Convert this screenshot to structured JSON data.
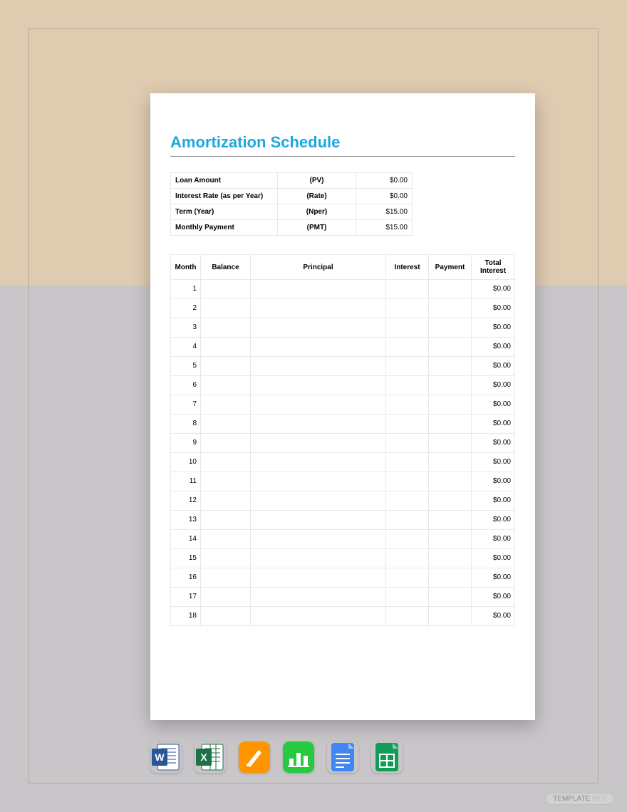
{
  "colors": {
    "bg_top": "#dfcbb0",
    "bg_bottom": "#c9c6c9",
    "frame_border": "#b0a898",
    "page_bg": "#ffffff",
    "title_color": "#1ba8e0",
    "grid_color": "#e8e8e8",
    "text": "#222222"
  },
  "title": "Amortization Schedule",
  "summary": [
    {
      "label": "Loan Amount",
      "symbol": "(PV)",
      "value": "$0.00"
    },
    {
      "label": "Interest Rate (as per Year)",
      "symbol": "(Rate)",
      "value": "$0.00"
    },
    {
      "label": "Term (Year)",
      "symbol": "(Nper)",
      "value": "$15.00"
    },
    {
      "label": "Monthly Payment",
      "symbol": "(PMT)",
      "value": "$15.00"
    }
  ],
  "schedule": {
    "columns": [
      "Month",
      "Balance",
      "Principal",
      "Interest",
      "Payment",
      "Total Interest"
    ],
    "rows": [
      {
        "month": "1",
        "balance": "",
        "principal": "",
        "interest": "",
        "payment": "",
        "total": "$0.00"
      },
      {
        "month": "2",
        "balance": "",
        "principal": "",
        "interest": "",
        "payment": "",
        "total": "$0.00"
      },
      {
        "month": "3",
        "balance": "",
        "principal": "",
        "interest": "",
        "payment": "",
        "total": "$0.00"
      },
      {
        "month": "4",
        "balance": "",
        "principal": "",
        "interest": "",
        "payment": "",
        "total": "$0.00"
      },
      {
        "month": "5",
        "balance": "",
        "principal": "",
        "interest": "",
        "payment": "",
        "total": "$0.00"
      },
      {
        "month": "6",
        "balance": "",
        "principal": "",
        "interest": "",
        "payment": "",
        "total": "$0.00"
      },
      {
        "month": "7",
        "balance": "",
        "principal": "",
        "interest": "",
        "payment": "",
        "total": "$0.00"
      },
      {
        "month": "8",
        "balance": "",
        "principal": "",
        "interest": "",
        "payment": "",
        "total": "$0.00"
      },
      {
        "month": "9",
        "balance": "",
        "principal": "",
        "interest": "",
        "payment": "",
        "total": "$0.00"
      },
      {
        "month": "10",
        "balance": "",
        "principal": "",
        "interest": "",
        "payment": "",
        "total": "$0.00"
      },
      {
        "month": "11",
        "balance": "",
        "principal": "",
        "interest": "",
        "payment": "",
        "total": "$0.00"
      },
      {
        "month": "12",
        "balance": "",
        "principal": "",
        "interest": "",
        "payment": "",
        "total": "$0.00"
      },
      {
        "month": "13",
        "balance": "",
        "principal": "",
        "interest": "",
        "payment": "",
        "total": "$0.00"
      },
      {
        "month": "14",
        "balance": "",
        "principal": "",
        "interest": "",
        "payment": "",
        "total": "$0.00"
      },
      {
        "month": "15",
        "balance": "",
        "principal": "",
        "interest": "",
        "payment": "",
        "total": "$0.00"
      },
      {
        "month": "16",
        "balance": "",
        "principal": "",
        "interest": "",
        "payment": "",
        "total": "$0.00"
      },
      {
        "month": "17",
        "balance": "",
        "principal": "",
        "interest": "",
        "payment": "",
        "total": "$0.00"
      },
      {
        "month": "18",
        "balance": "",
        "principal": "",
        "interest": "",
        "payment": "",
        "total": "$0.00"
      }
    ]
  },
  "app_icons": [
    {
      "name": "word-icon"
    },
    {
      "name": "excel-icon"
    },
    {
      "name": "pages-icon"
    },
    {
      "name": "numbers-icon"
    },
    {
      "name": "google-docs-icon"
    },
    {
      "name": "google-sheets-icon"
    }
  ],
  "watermark": {
    "brand": "TEMPLATE",
    "suffix": ".NET"
  }
}
